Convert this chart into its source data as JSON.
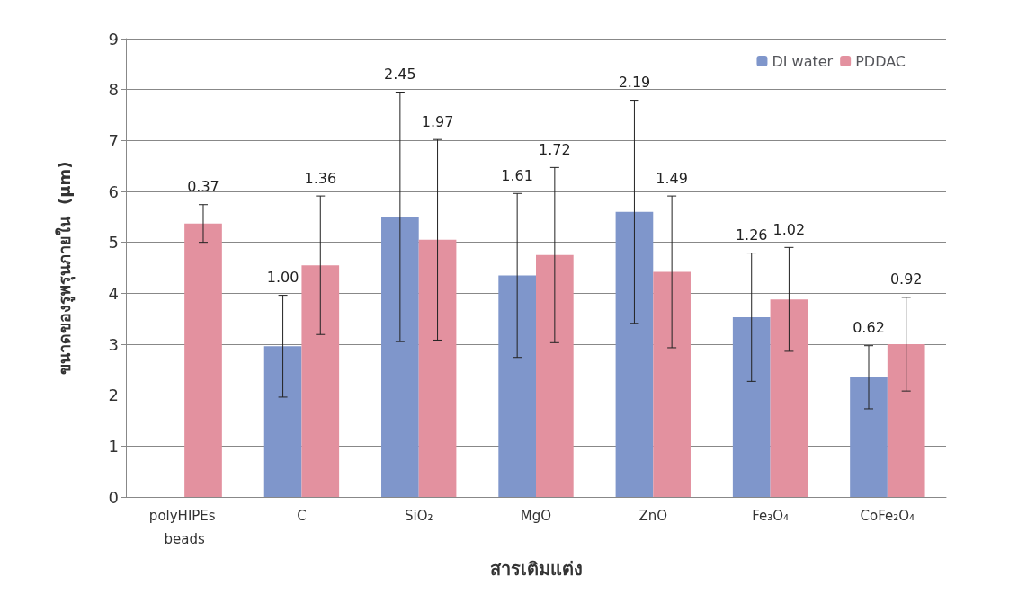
{
  "chart_data": {
    "type": "bar",
    "xlabel": "สารเติมแต่ง",
    "ylabel": "ขนาดของรูพรุนภายใน  (µm)",
    "categories": [
      "polyHIPEs beads",
      "C",
      "SiO₂",
      "MgO",
      "ZnO",
      "Fe₃O₄",
      "CoFe₂O₄"
    ],
    "series": [
      {
        "name": "DI water",
        "color": "#7f96cb",
        "values": [
          null,
          2.96,
          5.5,
          4.35,
          5.6,
          3.53,
          2.35
        ],
        "errors": [
          null,
          1.0,
          2.45,
          1.61,
          2.19,
          1.26,
          0.62
        ]
      },
      {
        "name": "PDDAC",
        "color": "#e3919f",
        "values": [
          5.37,
          4.55,
          5.05,
          4.75,
          4.42,
          3.88,
          3.0
        ],
        "errors": [
          0.37,
          1.36,
          1.97,
          1.72,
          1.49,
          1.02,
          0.92
        ]
      }
    ],
    "annotations": [
      "1.00",
      "2.45",
      "1.61",
      "2.19",
      "1.26",
      "0.62",
      "0.37",
      "1.36",
      "1.97",
      "1.72",
      "1.49",
      "1.02",
      "0.92"
    ],
    "ylim": [
      0,
      9
    ],
    "yticks": [
      0,
      1,
      2,
      3,
      4,
      5,
      6,
      7,
      8,
      9
    ],
    "grid": "y",
    "legend": "top right"
  }
}
